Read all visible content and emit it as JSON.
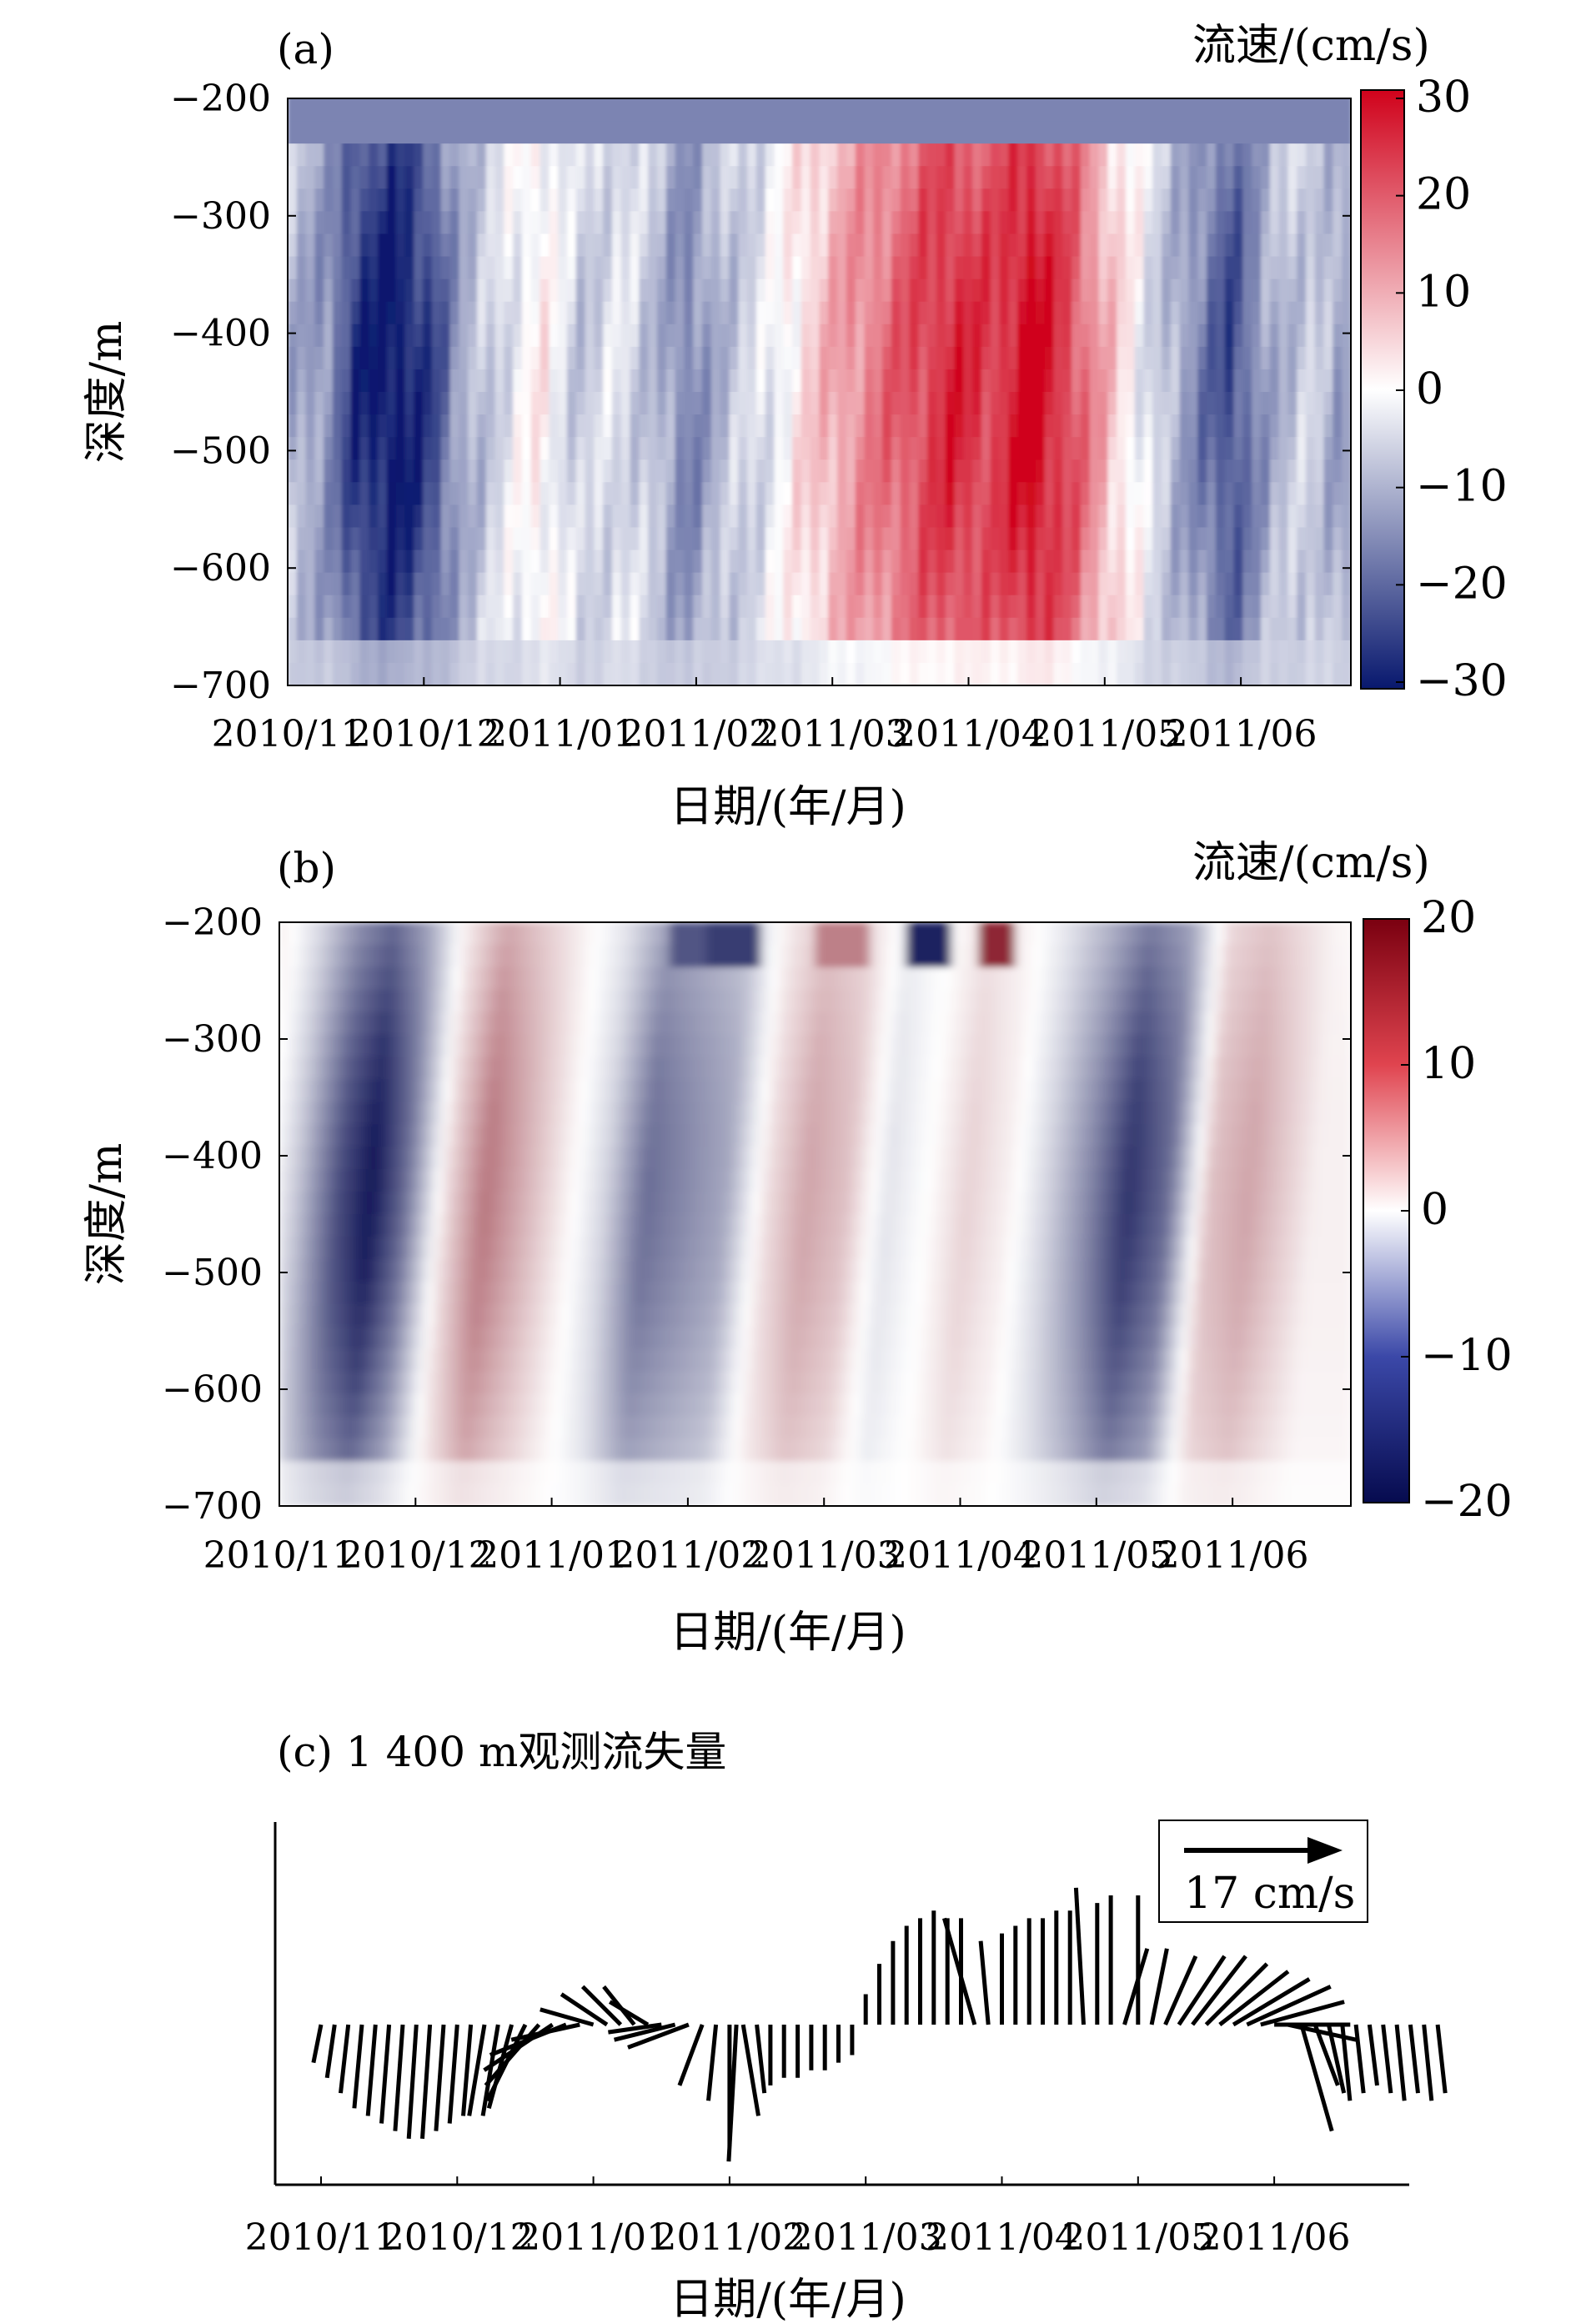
{
  "chart_data": [
    {
      "panel": "(a)",
      "type": "heatmap",
      "xlabel": "日期/(年/月)",
      "ylabel": "深度/m",
      "x_ticks": [
        "2010/11",
        "2010/12",
        "2011/01",
        "2011/02",
        "2011/03",
        "2011/04",
        "2011/05",
        "2011/06"
      ],
      "y_ticks": [
        "−200",
        "−300",
        "−400",
        "−500",
        "−600",
        "−700"
      ],
      "ylim": [
        -700,
        -200
      ],
      "colorbar_title": "流速/(cm/s)",
      "colorbar_ticks": [
        "30",
        "20",
        "10",
        "0",
        "−10",
        "−20",
        "−30"
      ],
      "clim": [
        -30,
        30
      ],
      "colors": {
        "low": "#08186e",
        "mid": "#ffffff",
        "high": "#d0021b"
      },
      "time_profile": [
        {
          "month": 0.0,
          "value": -8
        },
        {
          "month": 0.3,
          "value": -12
        },
        {
          "month": 0.5,
          "value": -22
        },
        {
          "month": 0.8,
          "value": -26
        },
        {
          "month": 1.1,
          "value": -20
        },
        {
          "month": 1.3,
          "value": -10
        },
        {
          "month": 1.6,
          "value": -4
        },
        {
          "month": 1.9,
          "value": 2
        },
        {
          "month": 2.2,
          "value": -6
        },
        {
          "month": 2.5,
          "value": -3
        },
        {
          "month": 2.8,
          "value": -8
        },
        {
          "month": 3.0,
          "value": -14
        },
        {
          "month": 3.3,
          "value": -7
        },
        {
          "month": 3.6,
          "value": -3
        },
        {
          "month": 3.9,
          "value": 4
        },
        {
          "month": 4.2,
          "value": 10
        },
        {
          "month": 4.6,
          "value": 16
        },
        {
          "month": 5.0,
          "value": 22
        },
        {
          "month": 5.3,
          "value": 19
        },
        {
          "month": 5.6,
          "value": 26
        },
        {
          "month": 5.9,
          "value": 18
        },
        {
          "month": 6.2,
          "value": 6
        },
        {
          "month": 6.5,
          "value": -4
        },
        {
          "month": 6.8,
          "value": -12
        },
        {
          "month": 7.1,
          "value": -20
        },
        {
          "month": 7.4,
          "value": -9
        },
        {
          "month": 7.7,
          "value": -5
        },
        {
          "month": 7.9,
          "value": -10
        }
      ]
    },
    {
      "panel": "(b)",
      "type": "heatmap",
      "xlabel": "日期/(年/月)",
      "ylabel": "深度/m",
      "x_ticks": [
        "2010/11",
        "2010/12",
        "2011/01",
        "2011/02",
        "2011/03",
        "2011/04",
        "2011/05",
        "2011/06"
      ],
      "y_ticks": [
        "−200",
        "−300",
        "−400",
        "−500",
        "−600",
        "−700"
      ],
      "ylim": [
        -700,
        -200
      ],
      "colorbar_title": "流速/(cm/s)",
      "colorbar_ticks": [
        "20",
        "10",
        "0",
        "−10",
        "−20"
      ],
      "clim": [
        -20,
        20
      ],
      "colors": {
        "low": "#060b4f",
        "mid": "#ffffff",
        "high": "#7a0010"
      },
      "time_profile": [
        {
          "month": 0.0,
          "value": 2
        },
        {
          "month": 0.3,
          "value": -4
        },
        {
          "month": 0.6,
          "value": -12
        },
        {
          "month": 0.85,
          "value": -16
        },
        {
          "month": 1.1,
          "value": -10
        },
        {
          "month": 1.4,
          "value": 2
        },
        {
          "month": 1.7,
          "value": 9
        },
        {
          "month": 2.0,
          "value": 5
        },
        {
          "month": 2.3,
          "value": 1
        },
        {
          "month": 2.6,
          "value": -3
        },
        {
          "month": 2.9,
          "value": -10
        },
        {
          "month": 3.2,
          "value": -8
        },
        {
          "month": 3.5,
          "value": -6
        },
        {
          "month": 3.8,
          "value": 2
        },
        {
          "month": 4.1,
          "value": 6
        },
        {
          "month": 4.4,
          "value": 4
        },
        {
          "month": 4.7,
          "value": -2
        },
        {
          "month": 5.0,
          "value": 0
        },
        {
          "month": 5.3,
          "value": 3
        },
        {
          "month": 5.6,
          "value": 1
        },
        {
          "month": 5.9,
          "value": -3
        },
        {
          "month": 6.2,
          "value": -8
        },
        {
          "month": 6.5,
          "value": -14
        },
        {
          "month": 6.8,
          "value": -10
        },
        {
          "month": 7.1,
          "value": 4
        },
        {
          "month": 7.4,
          "value": 6
        },
        {
          "month": 7.7,
          "value": 3
        },
        {
          "month": 7.9,
          "value": 1
        }
      ]
    },
    {
      "panel": "(c)",
      "type": "line",
      "title": "(c) 1 400 m观测流失量",
      "xlabel": "日期/(年/月)",
      "x_ticks": [
        "2010/11",
        "2010/12",
        "2011/01",
        "2011/02",
        "2011/03",
        "2011/04",
        "2011/05",
        "2011/06"
      ],
      "scale_label": "17 cm/s",
      "scale_value": 17,
      "vectors": [
        {
          "month": 0.0,
          "u": -1,
          "v": -5
        },
        {
          "month": 0.1,
          "u": -1,
          "v": -7
        },
        {
          "month": 0.2,
          "u": -1,
          "v": -9
        },
        {
          "month": 0.3,
          "u": -1,
          "v": -11
        },
        {
          "month": 0.4,
          "u": -1,
          "v": -12
        },
        {
          "month": 0.5,
          "u": -1,
          "v": -13
        },
        {
          "month": 0.6,
          "u": -1,
          "v": -14
        },
        {
          "month": 0.7,
          "u": -1,
          "v": -15
        },
        {
          "month": 0.8,
          "u": -1,
          "v": -15
        },
        {
          "month": 0.9,
          "u": -1,
          "v": -14
        },
        {
          "month": 1.0,
          "u": -1,
          "v": -13
        },
        {
          "month": 1.1,
          "u": -1,
          "v": -12
        },
        {
          "month": 1.2,
          "u": -2,
          "v": -12
        },
        {
          "month": 1.3,
          "u": -2,
          "v": -12
        },
        {
          "month": 1.4,
          "u": -3,
          "v": -11
        },
        {
          "month": 1.5,
          "u": -5,
          "v": -10
        },
        {
          "month": 1.6,
          "u": -7,
          "v": -8
        },
        {
          "month": 1.7,
          "u": -9,
          "v": -6
        },
        {
          "month": 1.8,
          "u": -10,
          "v": -4
        },
        {
          "month": 1.9,
          "u": -9,
          "v": -2
        },
        {
          "month": 2.0,
          "u": -7,
          "v": 2
        },
        {
          "month": 2.1,
          "u": -6,
          "v": 4
        },
        {
          "month": 2.2,
          "u": -5,
          "v": 5
        },
        {
          "month": 2.3,
          "u": -4,
          "v": 5
        },
        {
          "month": 2.4,
          "u": -5,
          "v": 3
        },
        {
          "month": 2.5,
          "u": -7,
          "v": -1
        },
        {
          "month": 2.6,
          "u": -8,
          "v": -2
        },
        {
          "month": 2.7,
          "u": -8,
          "v": -3
        },
        {
          "month": 2.8,
          "u": -3,
          "v": -8
        },
        {
          "month": 2.9,
          "u": -1,
          "v": -10
        },
        {
          "month": 3.0,
          "u": 0,
          "v": -16
        },
        {
          "month": 3.05,
          "u": -1,
          "v": -18
        },
        {
          "month": 3.1,
          "u": 2,
          "v": -12
        },
        {
          "month": 3.2,
          "u": 1,
          "v": -9
        },
        {
          "month": 3.3,
          "u": 0,
          "v": -8
        },
        {
          "month": 3.4,
          "u": 0,
          "v": -7
        },
        {
          "month": 3.5,
          "u": 0,
          "v": -7
        },
        {
          "month": 3.6,
          "u": 0,
          "v": -6
        },
        {
          "month": 3.7,
          "u": 0,
          "v": -6
        },
        {
          "month": 3.8,
          "u": 0,
          "v": -5
        },
        {
          "month": 3.9,
          "u": 0,
          "v": -4
        },
        {
          "month": 4.0,
          "u": 0,
          "v": 4
        },
        {
          "month": 4.1,
          "u": 0,
          "v": 8
        },
        {
          "month": 4.2,
          "u": 0,
          "v": 11
        },
        {
          "month": 4.3,
          "u": 0,
          "v": 13
        },
        {
          "month": 4.4,
          "u": 0,
          "v": 14
        },
        {
          "month": 4.5,
          "u": 0,
          "v": 15
        },
        {
          "month": 4.6,
          "u": 0,
          "v": 14
        },
        {
          "month": 4.7,
          "u": 0,
          "v": 14
        },
        {
          "month": 4.8,
          "u": -4,
          "v": 14
        },
        {
          "month": 4.9,
          "u": -1,
          "v": 11
        },
        {
          "month": 5.0,
          "u": 0,
          "v": 12
        },
        {
          "month": 5.1,
          "u": 0,
          "v": 13
        },
        {
          "month": 5.2,
          "u": 0,
          "v": 14
        },
        {
          "month": 5.3,
          "u": 0,
          "v": 14
        },
        {
          "month": 5.4,
          "u": 0,
          "v": 15
        },
        {
          "month": 5.5,
          "u": 0,
          "v": 15
        },
        {
          "month": 5.6,
          "u": -1,
          "v": 18
        },
        {
          "month": 5.7,
          "u": 0,
          "v": 16
        },
        {
          "month": 5.8,
          "u": 0,
          "v": 17
        },
        {
          "month": 5.9,
          "u": 3,
          "v": 10
        },
        {
          "month": 6.0,
          "u": 0,
          "v": 17
        },
        {
          "month": 6.1,
          "u": 2,
          "v": 10
        },
        {
          "month": 6.2,
          "u": 4,
          "v": 9
        },
        {
          "month": 6.3,
          "u": 6,
          "v": 9
        },
        {
          "month": 6.4,
          "u": 7,
          "v": 9
        },
        {
          "month": 6.5,
          "u": 8,
          "v": 8
        },
        {
          "month": 6.6,
          "u": 9,
          "v": 7
        },
        {
          "month": 6.7,
          "u": 10,
          "v": 6
        },
        {
          "month": 6.8,
          "u": 11,
          "v": 5
        },
        {
          "month": 6.9,
          "u": 11,
          "v": 3
        },
        {
          "month": 7.0,
          "u": 10,
          "v": 0
        },
        {
          "month": 7.1,
          "u": 9,
          "v": -2
        },
        {
          "month": 7.2,
          "u": 4,
          "v": -14
        },
        {
          "month": 7.3,
          "u": 3,
          "v": -8
        },
        {
          "month": 7.4,
          "u": 2,
          "v": -9
        },
        {
          "month": 7.5,
          "u": 1,
          "v": -10
        },
        {
          "month": 7.6,
          "u": 1,
          "v": -9
        },
        {
          "month": 7.7,
          "u": 1,
          "v": -8
        },
        {
          "month": 7.8,
          "u": 1,
          "v": -9
        },
        {
          "month": 7.9,
          "u": 1,
          "v": -10
        },
        {
          "month": 8.0,
          "u": 1,
          "v": -9
        },
        {
          "month": 8.1,
          "u": 1,
          "v": -10
        },
        {
          "month": 8.2,
          "u": 1,
          "v": -9
        }
      ]
    }
  ]
}
